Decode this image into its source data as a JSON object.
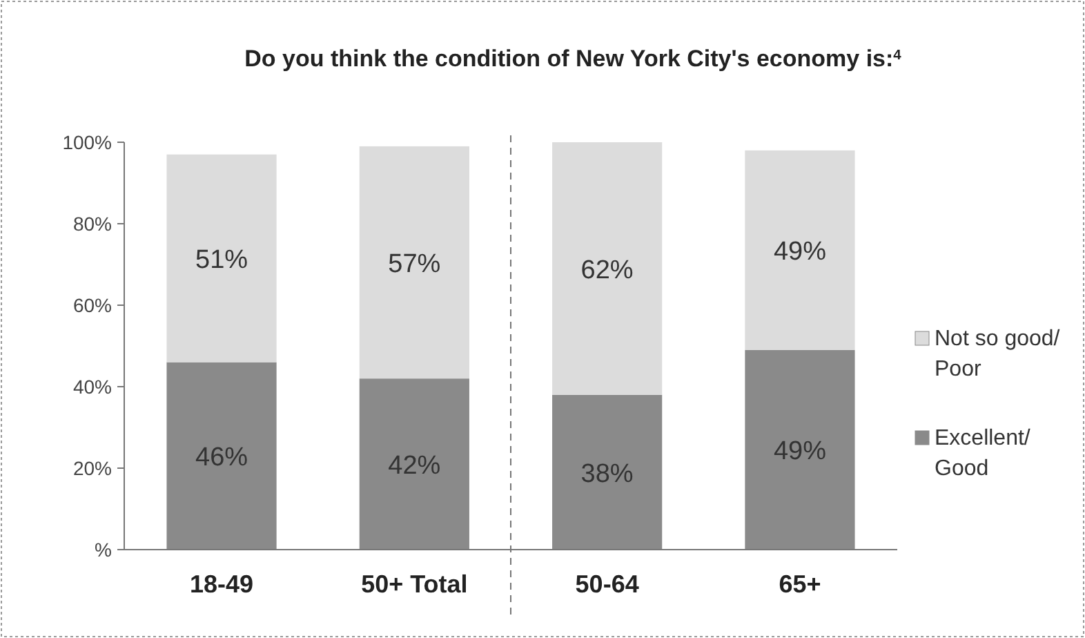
{
  "chart_data": {
    "type": "bar",
    "stacked": true,
    "title": "Do you think the condition of New York City's economy is:$^{4}$",
    "categories": [
      "18-49",
      "50+ Total",
      "50-64",
      "65+"
    ],
    "series": [
      {
        "name": "Excellent/ Good",
        "color": "#8a8a8a",
        "values": [
          46,
          42,
          38,
          49
        ],
        "value_labels": [
          "46%",
          "42%",
          "38%",
          "49%"
        ]
      },
      {
        "name": "Not so good/ Poor",
        "color": "#dcdcdc",
        "values": [
          51,
          57,
          62,
          49
        ],
        "value_labels": [
          "51%",
          "57%",
          "62%",
          "49%"
        ]
      }
    ],
    "ylim": [
      0,
      100
    ],
    "yticks": [
      {
        "value": 0,
        "label": "%"
      },
      {
        "value": 20,
        "label": "20%"
      },
      {
        "value": 40,
        "label": "40%"
      },
      {
        "value": 60,
        "label": "60%"
      },
      {
        "value": 80,
        "label": "80%"
      },
      {
        "value": 100,
        "label": "100%"
      }
    ],
    "grid": false,
    "legend": "right"
  }
}
